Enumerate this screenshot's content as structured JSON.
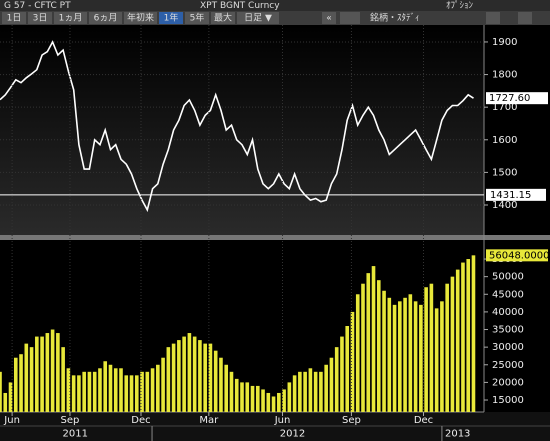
{
  "header": {
    "left": "G 57 - CFTC PT",
    "center": "XPT BGNT Curncy",
    "right": "ｵﾌﾟｼｮﾝ"
  },
  "toolbar": {
    "buttons": [
      "1日",
      "3日",
      "1ヵ月",
      "6ヵ月",
      "年初来",
      "1年",
      "5年",
      "最大",
      "日足 ▼"
    ],
    "selected": 5,
    "collapse": "«",
    "securities": "銘柄・ｽﾀﾃﾞｨ"
  },
  "chart_data": [
    {
      "type": "line",
      "x": [
        0,
        1,
        2,
        3,
        4,
        5,
        6,
        7,
        8,
        9,
        10,
        11,
        12,
        13,
        14,
        15,
        16,
        17,
        18,
        19,
        20,
        21,
        22,
        23,
        24,
        25,
        26,
        27,
        28,
        29,
        30,
        31,
        32,
        33,
        34,
        35,
        36,
        37,
        38,
        39,
        40,
        41,
        42,
        43,
        44,
        45,
        46,
        47,
        48,
        49,
        50,
        51,
        52,
        53,
        54,
        55,
        56,
        57,
        58,
        59,
        60,
        61,
        62,
        63,
        64,
        65,
        66,
        67,
        68,
        69,
        70,
        71,
        72,
        73,
        74,
        75,
        76,
        77,
        78,
        79,
        80,
        81,
        82,
        83,
        84,
        85,
        86,
        87,
        88,
        89,
        90
      ],
      "series": [
        {
          "color": "#ffffff",
          "values": [
            1723,
            1738,
            1760,
            1784,
            1775,
            1790,
            1802,
            1815,
            1860,
            1870,
            1900,
            1860,
            1875,
            1810,
            1753,
            1585,
            1510,
            1510,
            1600,
            1585,
            1630,
            1570,
            1585,
            1540,
            1525,
            1495,
            1450,
            1415,
            1385,
            1450,
            1465,
            1525,
            1570,
            1630,
            1660,
            1705,
            1722,
            1690,
            1645,
            1675,
            1690,
            1738,
            1690,
            1630,
            1645,
            1600,
            1585,
            1555,
            1600,
            1510,
            1465,
            1450,
            1465,
            1495,
            1465,
            1450,
            1495,
            1450,
            1430,
            1415,
            1420,
            1410,
            1415,
            1465,
            1495,
            1570,
            1660,
            1705,
            1645,
            1675,
            1700,
            1675,
            1630,
            1600,
            1555,
            1570,
            1585,
            1600,
            1615,
            1630,
            1600,
            1570,
            1540,
            1600,
            1660,
            1690,
            1705,
            1705,
            1720,
            1738,
            1727.6
          ]
        }
      ],
      "last_value_label": "1727.60",
      "reference_line": 1431.15,
      "xlim": [
        0,
        92
      ],
      "ylim": [
        1308,
        1952
      ],
      "yticks": [
        1400,
        1500,
        1600,
        1700,
        1800,
        1900
      ],
      "grid": true
    },
    {
      "type": "bar",
      "x": [
        0,
        1,
        2,
        3,
        4,
        5,
        6,
        7,
        8,
        9,
        10,
        11,
        12,
        13,
        14,
        15,
        16,
        17,
        18,
        19,
        20,
        21,
        22,
        23,
        24,
        25,
        26,
        27,
        28,
        29,
        30,
        31,
        32,
        33,
        34,
        35,
        36,
        37,
        38,
        39,
        40,
        41,
        42,
        43,
        44,
        45,
        46,
        47,
        48,
        49,
        50,
        51,
        52,
        53,
        54,
        55,
        56,
        57,
        58,
        59,
        60,
        61,
        62,
        63,
        64,
        65,
        66,
        67,
        68,
        69,
        70,
        71,
        72,
        73,
        74,
        75,
        76,
        77,
        78,
        79,
        80,
        81,
        82,
        83,
        84,
        85,
        86,
        87,
        88,
        89,
        90
      ],
      "series": [
        {
          "color": "#e8e83a",
          "values": [
            23000,
            17000,
            20000,
            27000,
            28000,
            31000,
            30000,
            33000,
            33000,
            34000,
            35000,
            34000,
            30000,
            24000,
            22000,
            22000,
            23000,
            23000,
            23000,
            24000,
            26000,
            25000,
            24000,
            24000,
            22000,
            22000,
            22000,
            23000,
            23000,
            24000,
            25000,
            27000,
            30000,
            31000,
            32000,
            33000,
            34000,
            33000,
            32000,
            31000,
            31000,
            29000,
            27000,
            25000,
            23000,
            21000,
            20000,
            20000,
            19000,
            19000,
            18000,
            17000,
            16000,
            17000,
            18000,
            20000,
            22000,
            23000,
            23000,
            24000,
            23000,
            23000,
            25000,
            27000,
            30000,
            33000,
            36000,
            40000,
            45000,
            48000,
            51000,
            53000,
            49000,
            46000,
            44000,
            42000,
            43000,
            44000,
            45000,
            43000,
            42000,
            47000,
            48000,
            41000,
            43000,
            48000,
            50000,
            52000,
            54000,
            55000,
            56048
          ]
        }
      ],
      "last_value_label": "56048.0000",
      "xlim": [
        0,
        92
      ],
      "ylim": [
        11600,
        60400
      ],
      "yticks": [
        15000,
        20000,
        25000,
        30000,
        35000,
        40000,
        45000,
        50000,
        55000
      ],
      "grid": false,
      "xticks": [
        {
          "value": 2.3,
          "label": "Jun"
        },
        {
          "value": 13.3,
          "label": "Sep"
        },
        {
          "value": 26.8,
          "label": "Dec"
        },
        {
          "value": 39.7,
          "label": "Mar"
        },
        {
          "value": 53.7,
          "label": "Jun"
        },
        {
          "value": 66.8,
          "label": "Sep"
        },
        {
          "value": 80.5,
          "label": "Dec"
        }
      ],
      "year_ticks": [
        28.9,
        84
      ],
      "year_labels": [
        {
          "value": 14.3,
          "label": "2011"
        },
        {
          "value": 55.6,
          "label": "2012"
        },
        {
          "value": 87,
          "label": "2013"
        }
      ]
    }
  ]
}
